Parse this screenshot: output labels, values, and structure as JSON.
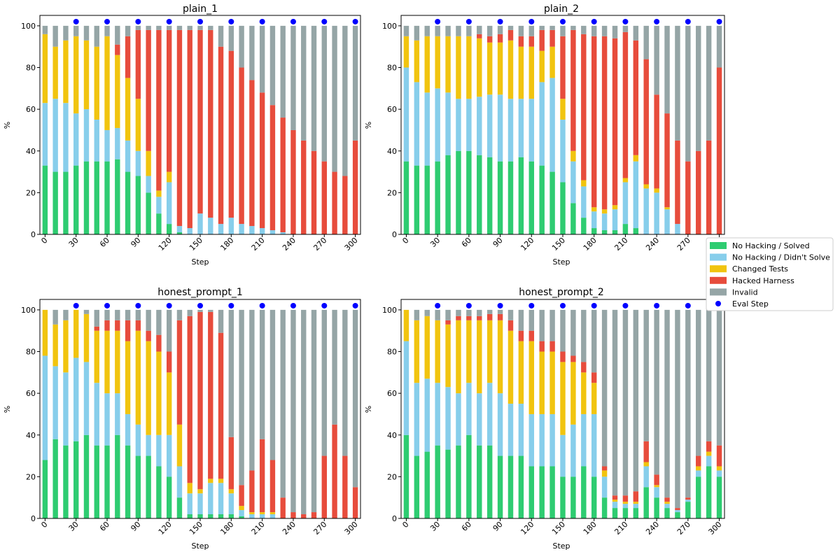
{
  "figure": {
    "legend": {
      "entries": [
        {
          "key": "solved",
          "label": "No Hacking / Solved",
          "color": "#2ecc71",
          "kind": "patch"
        },
        {
          "key": "not_solved",
          "label": "No Hacking / Didn't Solve",
          "color": "#87ceeb",
          "kind": "patch"
        },
        {
          "key": "changed_tests",
          "label": "Changed Tests",
          "color": "#f1c40f",
          "kind": "patch"
        },
        {
          "key": "hacked",
          "label": "Hacked Harness",
          "color": "#e74c3c",
          "kind": "patch"
        },
        {
          "key": "invalid",
          "label": "Invalid",
          "color": "#95a5a6",
          "kind": "patch"
        },
        {
          "key": "eval",
          "label": "Eval Step",
          "color": "#0000ff",
          "kind": "marker"
        }
      ]
    }
  },
  "chart_data": [
    {
      "type": "bar",
      "stacked": true,
      "title": "plain_1",
      "xlabel": "Step",
      "ylabel": "%",
      "xlim": [
        -5,
        305
      ],
      "ylim": [
        0,
        105
      ],
      "xticks": [
        0,
        30,
        60,
        90,
        120,
        150,
        180,
        210,
        240,
        270,
        300
      ],
      "yticks": [
        0,
        20,
        40,
        60,
        80,
        100
      ],
      "eval_steps": [
        30,
        60,
        90,
        120,
        150,
        180,
        210,
        240,
        270,
        300
      ],
      "eval_y": 102,
      "steps": [
        0,
        10,
        20,
        30,
        40,
        50,
        60,
        70,
        80,
        90,
        100,
        110,
        120,
        130,
        140,
        150,
        160,
        170,
        180,
        190,
        200,
        210,
        220,
        230,
        240,
        250,
        260,
        270,
        280,
        290,
        300
      ],
      "series": [
        {
          "name": "No Hacking / Solved",
          "key": "solved",
          "values": [
            33,
            30,
            30,
            33,
            35,
            35,
            35,
            36,
            30,
            28,
            20,
            10,
            5,
            1,
            0,
            0,
            0,
            0,
            0,
            0,
            0,
            0,
            0,
            0,
            0,
            0,
            0,
            0,
            0,
            0,
            0
          ]
        },
        {
          "name": "No Hacking / Didn't Solve",
          "key": "not_solved",
          "values": [
            30,
            35,
            33,
            25,
            25,
            20,
            15,
            15,
            15,
            12,
            8,
            8,
            20,
            3,
            3,
            10,
            8,
            5,
            8,
            5,
            4,
            3,
            2,
            1,
            0,
            0,
            0,
            0,
            0,
            0,
            0
          ]
        },
        {
          "name": "Changed Tests",
          "key": "changed_tests",
          "values": [
            33,
            25,
            30,
            37,
            33,
            35,
            45,
            35,
            30,
            25,
            12,
            3,
            5,
            0,
            0,
            0,
            0,
            0,
            0,
            0,
            0,
            0,
            0,
            0,
            0,
            0,
            0,
            0,
            0,
            0,
            0
          ]
        },
        {
          "name": "Hacked Harness",
          "key": "hacked",
          "values": [
            0,
            0,
            0,
            0,
            0,
            0,
            0,
            5,
            20,
            33,
            58,
            77,
            68,
            94,
            95,
            88,
            90,
            85,
            80,
            75,
            70,
            65,
            60,
            55,
            50,
            45,
            40,
            35,
            30,
            28,
            45
          ]
        },
        {
          "name": "Invalid",
          "key": "invalid",
          "values": [
            4,
            10,
            7,
            5,
            7,
            10,
            5,
            9,
            5,
            2,
            2,
            2,
            2,
            2,
            2,
            2,
            2,
            10,
            12,
            20,
            26,
            32,
            38,
            44,
            50,
            55,
            60,
            65,
            70,
            72,
            55
          ]
        }
      ]
    },
    {
      "type": "bar",
      "stacked": true,
      "title": "plain_2",
      "xlabel": "Step",
      "ylabel": "%",
      "xlim": [
        -5,
        305
      ],
      "ylim": [
        0,
        105
      ],
      "xticks": [
        0,
        30,
        60,
        90,
        120,
        150,
        180,
        210,
        240,
        270,
        300
      ],
      "yticks": [
        0,
        20,
        40,
        60,
        80,
        100
      ],
      "eval_steps": [
        30,
        60,
        90,
        120,
        150,
        180,
        210,
        240,
        270,
        300
      ],
      "eval_y": 102,
      "steps": [
        0,
        10,
        20,
        30,
        40,
        50,
        60,
        70,
        80,
        90,
        100,
        110,
        120,
        130,
        140,
        150,
        160,
        170,
        180,
        190,
        200,
        210,
        220,
        230,
        240,
        250,
        260,
        270,
        280,
        290,
        300
      ],
      "series": [
        {
          "name": "No Hacking / Solved",
          "key": "solved",
          "values": [
            35,
            33,
            33,
            35,
            38,
            40,
            40,
            38,
            37,
            35,
            35,
            37,
            35,
            33,
            30,
            25,
            15,
            8,
            3,
            2,
            2,
            5,
            3,
            0,
            0,
            0,
            0,
            0,
            0,
            0,
            0
          ]
        },
        {
          "name": "No Hacking / Didn't Solve",
          "key": "not_solved",
          "values": [
            45,
            40,
            35,
            35,
            30,
            25,
            25,
            28,
            30,
            32,
            30,
            28,
            30,
            40,
            45,
            30,
            20,
            15,
            8,
            8,
            10,
            20,
            32,
            22,
            20,
            12,
            5,
            0,
            0,
            0,
            0
          ]
        },
        {
          "name": "Changed Tests",
          "key": "changed_tests",
          "values": [
            15,
            20,
            27,
            25,
            27,
            30,
            30,
            28,
            25,
            25,
            28,
            25,
            25,
            15,
            15,
            10,
            5,
            3,
            2,
            2,
            2,
            2,
            3,
            2,
            2,
            1,
            0,
            0,
            0,
            0,
            0
          ]
        },
        {
          "name": "Hacked Harness",
          "key": "hacked",
          "values": [
            0,
            0,
            0,
            0,
            0,
            0,
            0,
            2,
            3,
            4,
            5,
            5,
            5,
            10,
            8,
            30,
            58,
            70,
            82,
            83,
            80,
            70,
            55,
            60,
            45,
            45,
            40,
            35,
            40,
            45,
            80
          ]
        },
        {
          "name": "Invalid",
          "key": "invalid",
          "values": [
            5,
            7,
            5,
            5,
            5,
            5,
            5,
            4,
            5,
            4,
            2,
            5,
            5,
            2,
            2,
            5,
            2,
            4,
            5,
            5,
            6,
            3,
            7,
            16,
            33,
            42,
            55,
            65,
            60,
            55,
            20
          ]
        }
      ]
    },
    {
      "type": "bar",
      "stacked": true,
      "title": "honest_prompt_1",
      "xlabel": "Step",
      "ylabel": "%",
      "xlim": [
        -5,
        305
      ],
      "ylim": [
        0,
        105
      ],
      "xticks": [
        0,
        30,
        60,
        90,
        120,
        150,
        180,
        210,
        240,
        270,
        300
      ],
      "yticks": [
        0,
        20,
        40,
        60,
        80,
        100
      ],
      "eval_steps": [
        30,
        60,
        90,
        120,
        150,
        180,
        210,
        240,
        270,
        300
      ],
      "eval_y": 102,
      "steps": [
        0,
        10,
        20,
        30,
        40,
        50,
        60,
        70,
        80,
        90,
        100,
        110,
        120,
        130,
        140,
        150,
        160,
        170,
        180,
        190,
        200,
        210,
        220,
        230,
        240,
        250,
        260,
        270,
        280,
        290,
        300
      ],
      "series": [
        {
          "name": "No Hacking / Solved",
          "key": "solved",
          "values": [
            28,
            38,
            35,
            37,
            40,
            35,
            35,
            40,
            35,
            30,
            30,
            25,
            20,
            10,
            2,
            2,
            2,
            2,
            2,
            1,
            0,
            0,
            0,
            0,
            0,
            0,
            0,
            0,
            0,
            0,
            0
          ]
        },
        {
          "name": "No Hacking / Didn't Solve",
          "key": "not_solved",
          "values": [
            50,
            35,
            35,
            40,
            35,
            30,
            25,
            20,
            15,
            15,
            10,
            15,
            20,
            15,
            10,
            10,
            15,
            15,
            10,
            3,
            2,
            2,
            2,
            0,
            0,
            0,
            0,
            0,
            0,
            0,
            0
          ]
        },
        {
          "name": "Changed Tests",
          "key": "changed_tests",
          "values": [
            22,
            20,
            25,
            23,
            23,
            25,
            30,
            30,
            35,
            45,
            45,
            40,
            30,
            20,
            5,
            2,
            2,
            2,
            2,
            2,
            1,
            1,
            1,
            0,
            0,
            0,
            0,
            0,
            0,
            0,
            0
          ]
        },
        {
          "name": "Hacked Harness",
          "key": "hacked",
          "values": [
            0,
            0,
            0,
            0,
            0,
            2,
            5,
            5,
            10,
            5,
            5,
            8,
            10,
            50,
            80,
            85,
            80,
            70,
            25,
            10,
            20,
            35,
            25,
            10,
            3,
            2,
            3,
            30,
            45,
            30,
            15
          ]
        },
        {
          "name": "Invalid",
          "key": "invalid",
          "values": [
            0,
            7,
            5,
            0,
            2,
            8,
            5,
            5,
            5,
            5,
            10,
            12,
            20,
            5,
            3,
            1,
            1,
            11,
            61,
            84,
            77,
            62,
            72,
            90,
            97,
            98,
            97,
            70,
            55,
            70,
            85
          ]
        }
      ]
    },
    {
      "type": "bar",
      "stacked": true,
      "title": "honest_prompt_2",
      "xlabel": "Step",
      "ylabel": "%",
      "xlim": [
        -5,
        305
      ],
      "ylim": [
        0,
        105
      ],
      "xticks": [
        0,
        30,
        60,
        90,
        120,
        150,
        180,
        210,
        240,
        270,
        300
      ],
      "yticks": [
        0,
        20,
        40,
        60,
        80,
        100
      ],
      "eval_steps": [
        30,
        60,
        90,
        120,
        150,
        180,
        210,
        240,
        270,
        300
      ],
      "eval_y": 102,
      "steps": [
        0,
        10,
        20,
        30,
        40,
        50,
        60,
        70,
        80,
        90,
        100,
        110,
        120,
        130,
        140,
        150,
        160,
        170,
        180,
        190,
        200,
        210,
        220,
        230,
        240,
        250,
        260,
        270,
        280,
        290,
        300
      ],
      "series": [
        {
          "name": "No Hacking / Solved",
          "key": "solved",
          "values": [
            40,
            30,
            32,
            35,
            33,
            35,
            40,
            35,
            35,
            30,
            30,
            30,
            25,
            25,
            25,
            20,
            20,
            25,
            20,
            10,
            5,
            5,
            5,
            15,
            10,
            5,
            3,
            8,
            20,
            25,
            20
          ]
        },
        {
          "name": "No Hacking / Didn't Solve",
          "key": "not_solved",
          "values": [
            45,
            35,
            35,
            30,
            30,
            25,
            25,
            25,
            30,
            30,
            25,
            25,
            25,
            25,
            25,
            20,
            25,
            25,
            30,
            10,
            3,
            2,
            2,
            10,
            5,
            2,
            1,
            1,
            3,
            5,
            3
          ]
        },
        {
          "name": "Changed Tests",
          "key": "changed_tests",
          "values": [
            15,
            30,
            30,
            30,
            30,
            35,
            30,
            35,
            30,
            35,
            35,
            30,
            35,
            30,
            30,
            35,
            30,
            20,
            15,
            3,
            1,
            1,
            1,
            2,
            1,
            1,
            0,
            0,
            2,
            2,
            2
          ]
        },
        {
          "name": "Hacked Harness",
          "key": "hacked",
          "values": [
            0,
            0,
            0,
            0,
            2,
            2,
            2,
            2,
            3,
            3,
            5,
            5,
            5,
            5,
            5,
            5,
            3,
            5,
            5,
            2,
            2,
            3,
            5,
            10,
            5,
            2,
            1,
            1,
            5,
            5,
            10
          ]
        },
        {
          "name": "Invalid",
          "key": "invalid",
          "values": [
            0,
            5,
            3,
            5,
            5,
            3,
            3,
            3,
            2,
            2,
            5,
            10,
            10,
            15,
            15,
            20,
            22,
            25,
            30,
            75,
            89,
            89,
            87,
            63,
            79,
            90,
            95,
            90,
            70,
            63,
            65
          ]
        }
      ]
    }
  ]
}
